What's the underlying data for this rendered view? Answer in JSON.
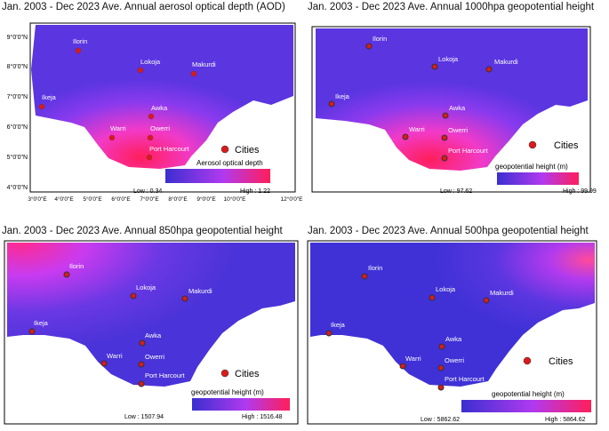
{
  "panels": [
    {
      "id": "aod",
      "title": "Jan. 2003 - Dec 2023 Ave. Annual aerosol optical depth (AOD)",
      "legend_title": "Aerosol optical depth",
      "low_label": "Low : 0.34",
      "high_label": "High : 1.22",
      "low_value": 0.34,
      "high_value": 1.22,
      "hotspot": "south",
      "lat_labels": [
        "9°0'0\"N",
        "8°0'0\"N",
        "7°0'0\"N",
        "6°0'0\"N",
        "5°0'0\"N",
        "4°0'0\"N"
      ],
      "lon_labels": [
        "3°0'0\"E",
        "4°0'0\"E",
        "5°0'0\"E",
        "6°0'0\"E",
        "7°0'0\"E",
        "8°0'0\"E",
        "9°0'0\"E",
        "10°0'0\"E",
        "12°0'0\"E"
      ]
    },
    {
      "id": "gph1000",
      "title": "Jan. 2003 - Dec 2023 Ave. Annual 1000hpa geopotential height",
      "legend_title": "geopotential height (m)",
      "low_label": "Low : 97.62",
      "high_label": "High : 99.99",
      "low_value": 97.62,
      "high_value": 99.99,
      "hotspot": "south"
    },
    {
      "id": "gph850",
      "title": "Jan. 2003 - Dec 2023 Ave. Annual 850hpa geopotential height",
      "legend_title": "geopotential height (m)",
      "low_label": "Low : 1507.94",
      "high_label": "High : 1516.48",
      "low_value": 1507.94,
      "high_value": 1516.48,
      "hotspot": "north"
    },
    {
      "id": "gph500",
      "title": "Jan. 2003 - Dec 2023 Ave. Annual 500hpa geopotential height",
      "legend_title": "geopotential height (m)",
      "low_label": "Low : 5862.62",
      "high_label": "High : 5864.62",
      "low_value": 5862.62,
      "high_value": 5864.62,
      "hotspot": "northeast"
    }
  ],
  "legend": {
    "cities_label": "Cities"
  },
  "cities": [
    "Ilorin",
    "Lokoja",
    "Makurdi",
    "Ikeja",
    "Awka",
    "Warri",
    "Owerri",
    "Port Harcourt"
  ],
  "colors": {
    "low": "#3a2fd0",
    "mid": "#c23bf5",
    "high": "#ff1e5a",
    "city_marker": "#d91b1b"
  }
}
